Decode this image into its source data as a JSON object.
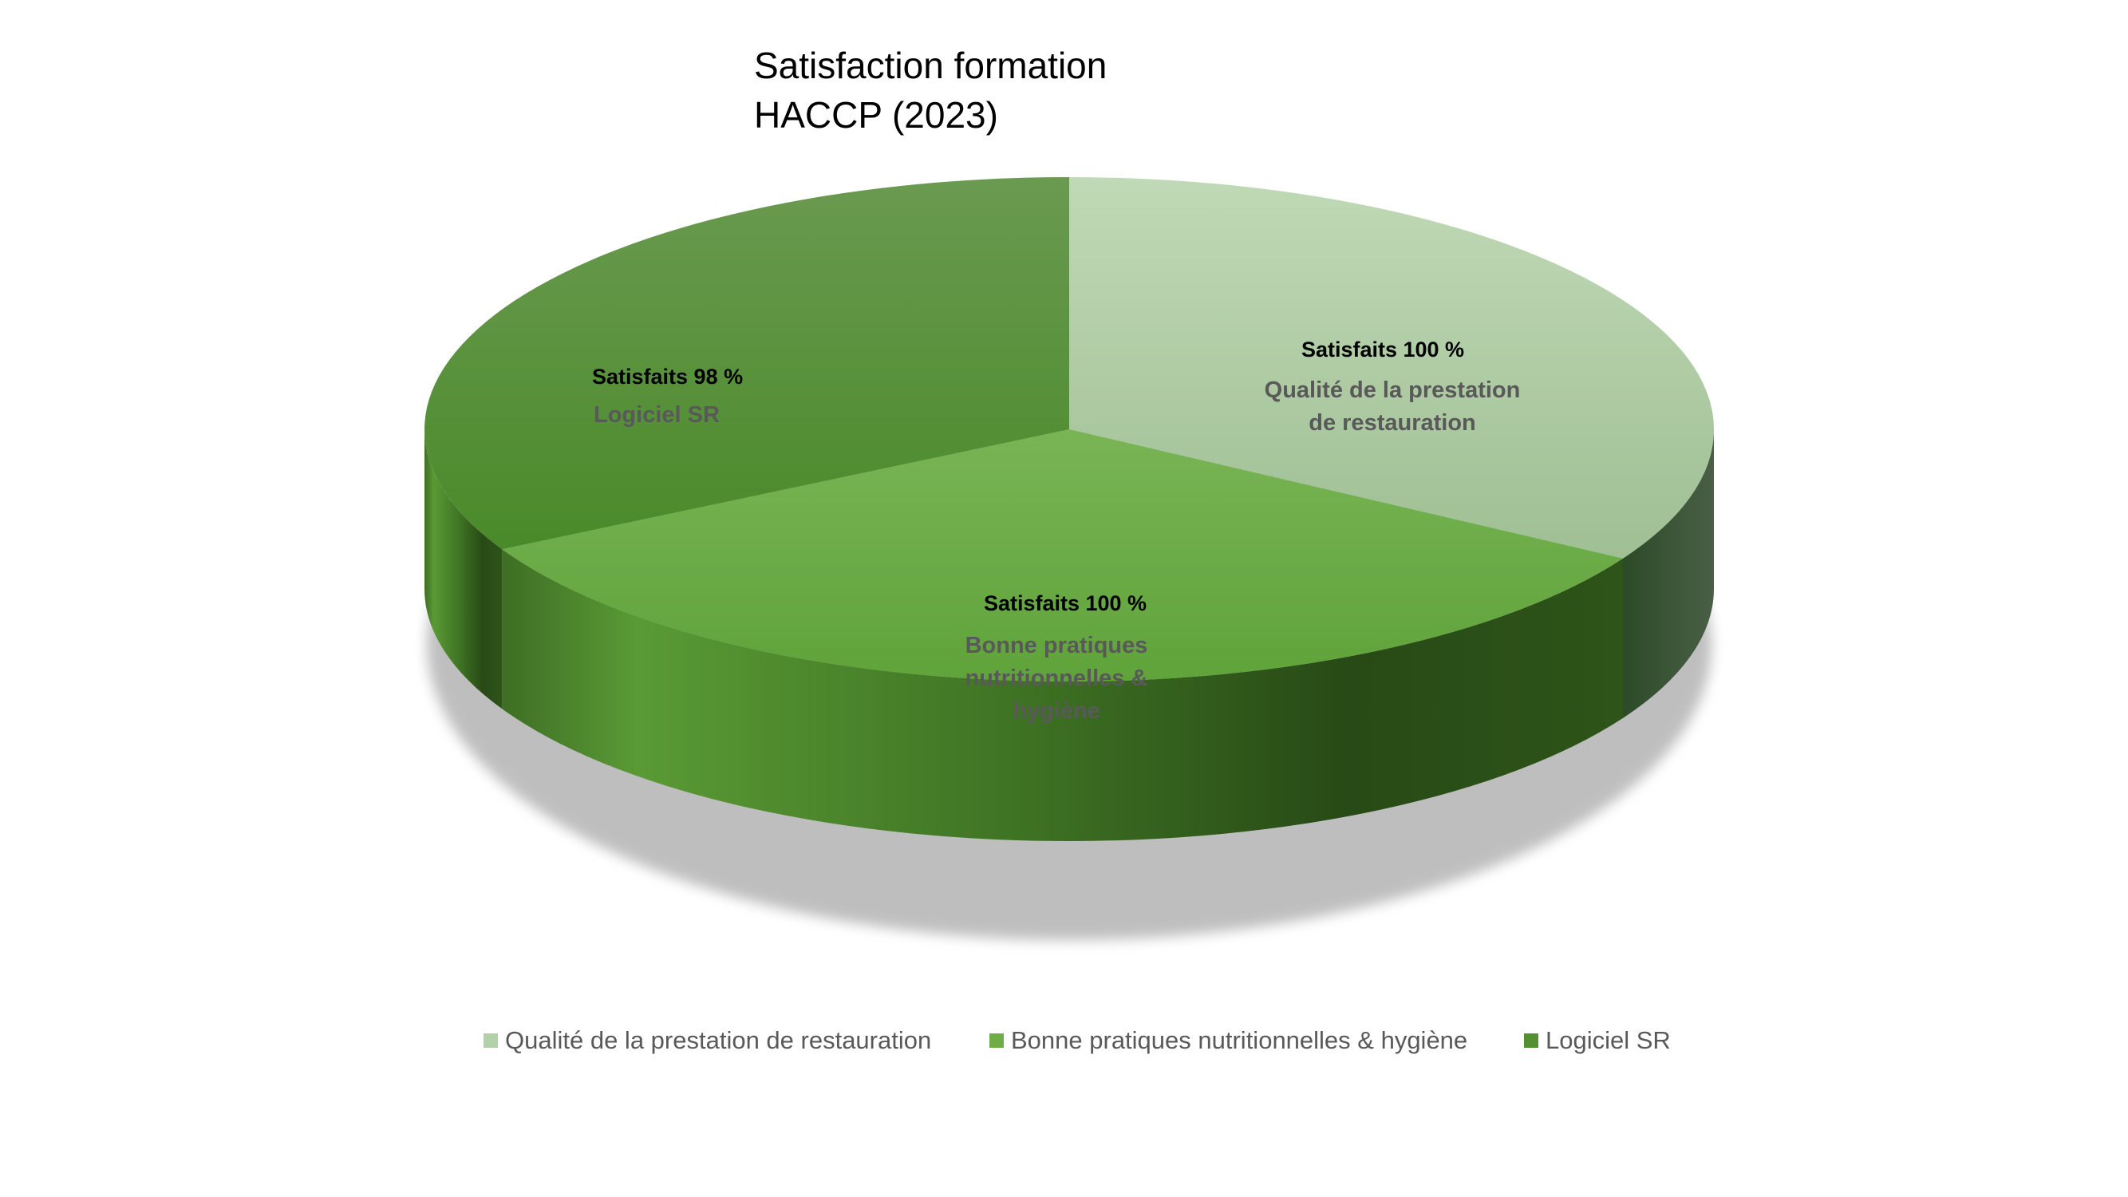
{
  "chart_data": {
    "type": "pie",
    "title_lines": [
      "Satisfaction formation",
      "HACCP (2023)"
    ],
    "categories": [
      "Qualité de la prestation de restauration",
      "Bonne pratiques nutritionnelles & hygiène",
      "Logiciel SR"
    ],
    "values": [
      100,
      100,
      98
    ],
    "data_labels": [
      {
        "value": "Satisfaits 100 %",
        "category_lines": [
          "Qualité de la prestation",
          "de restauration"
        ]
      },
      {
        "value": "Satisfaits 100 %",
        "category_lines": [
          "Bonne pratiques",
          "nutritionnelles &",
          "hygiène"
        ]
      },
      {
        "value": "Satisfaits 98 %",
        "category_lines": [
          "Logiciel SR"
        ]
      }
    ],
    "colors": [
      "#b3d1a8",
      "#70ad47",
      "#548f33"
    ],
    "side_colors": [
      "#3f5a3a",
      "#3a6a22",
      "#3f7a25"
    ],
    "legend_position": "bottom",
    "style": "3d"
  }
}
